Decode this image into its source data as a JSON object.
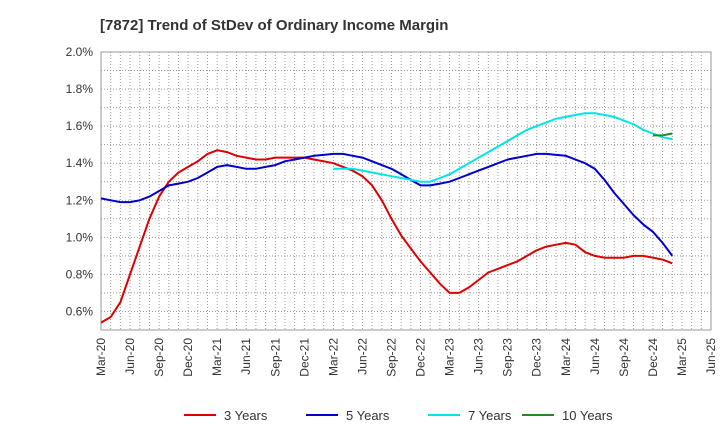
{
  "chart_data": {
    "type": "line",
    "title": "[7872]  Trend of StDev of Ordinary Income Margin",
    "xlabel": "",
    "ylabel": "",
    "x_ticks": [
      "Mar-20",
      "Jun-20",
      "Sep-20",
      "Dec-20",
      "Mar-21",
      "Jun-21",
      "Sep-21",
      "Dec-21",
      "Mar-22",
      "Jun-22",
      "Sep-22",
      "Dec-22",
      "Mar-23",
      "Jun-23",
      "Sep-23",
      "Dec-23",
      "Mar-24",
      "Jun-24",
      "Sep-24",
      "Dec-24",
      "Mar-25",
      "Jun-25"
    ],
    "y_ticks": [
      "0.6%",
      "0.8%",
      "1.0%",
      "1.2%",
      "1.4%",
      "1.6%",
      "1.8%",
      "2.0%"
    ],
    "ylim": [
      0.5,
      2.0
    ],
    "y_unit": "%",
    "grid": true,
    "legend_position": "bottom",
    "series": [
      {
        "name": "3 Years",
        "color": "#dd0000",
        "points": [
          [
            "Mar-20",
            0.54
          ],
          [
            "Apr-20",
            0.57
          ],
          [
            "May-20",
            0.65
          ],
          [
            "Jun-20",
            0.8
          ],
          [
            "Jul-20",
            0.95
          ],
          [
            "Aug-20",
            1.1
          ],
          [
            "Sep-20",
            1.22
          ],
          [
            "Oct-20",
            1.3
          ],
          [
            "Nov-20",
            1.35
          ],
          [
            "Dec-20",
            1.38
          ],
          [
            "Jan-21",
            1.41
          ],
          [
            "Feb-21",
            1.45
          ],
          [
            "Mar-21",
            1.47
          ],
          [
            "Apr-21",
            1.46
          ],
          [
            "May-21",
            1.44
          ],
          [
            "Jun-21",
            1.43
          ],
          [
            "Jul-21",
            1.42
          ],
          [
            "Aug-21",
            1.42
          ],
          [
            "Sep-21",
            1.43
          ],
          [
            "Oct-21",
            1.43
          ],
          [
            "Nov-21",
            1.43
          ],
          [
            "Dec-21",
            1.43
          ],
          [
            "Jan-22",
            1.42
          ],
          [
            "Feb-22",
            1.41
          ],
          [
            "Mar-22",
            1.4
          ],
          [
            "Apr-22",
            1.38
          ],
          [
            "May-22",
            1.36
          ],
          [
            "Jun-22",
            1.33
          ],
          [
            "Jul-22",
            1.28
          ],
          [
            "Aug-22",
            1.2
          ],
          [
            "Sep-22",
            1.1
          ],
          [
            "Oct-22",
            1.01
          ],
          [
            "Nov-22",
            0.94
          ],
          [
            "Dec-22",
            0.87
          ],
          [
            "Jan-23",
            0.81
          ],
          [
            "Feb-23",
            0.75
          ],
          [
            "Mar-23",
            0.7
          ],
          [
            "Apr-23",
            0.7
          ],
          [
            "May-23",
            0.73
          ],
          [
            "Jun-23",
            0.77
          ],
          [
            "Jul-23",
            0.81
          ],
          [
            "Aug-23",
            0.83
          ],
          [
            "Sep-23",
            0.85
          ],
          [
            "Oct-23",
            0.87
          ],
          [
            "Nov-23",
            0.9
          ],
          [
            "Dec-23",
            0.93
          ],
          [
            "Jan-24",
            0.95
          ],
          [
            "Feb-24",
            0.96
          ],
          [
            "Mar-24",
            0.97
          ],
          [
            "Apr-24",
            0.96
          ],
          [
            "May-24",
            0.92
          ],
          [
            "Jun-24",
            0.9
          ],
          [
            "Jul-24",
            0.89
          ],
          [
            "Aug-24",
            0.89
          ],
          [
            "Sep-24",
            0.89
          ],
          [
            "Oct-24",
            0.9
          ],
          [
            "Nov-24",
            0.9
          ],
          [
            "Dec-24",
            0.89
          ],
          [
            "Jan-25",
            0.88
          ],
          [
            "Feb-25",
            0.86
          ]
        ]
      },
      {
        "name": "5 Years",
        "color": "#0000cc",
        "points": [
          [
            "Mar-20",
            1.21
          ],
          [
            "Apr-20",
            1.2
          ],
          [
            "May-20",
            1.19
          ],
          [
            "Jun-20",
            1.19
          ],
          [
            "Jul-20",
            1.2
          ],
          [
            "Aug-20",
            1.22
          ],
          [
            "Sep-20",
            1.25
          ],
          [
            "Oct-20",
            1.28
          ],
          [
            "Nov-20",
            1.29
          ],
          [
            "Dec-20",
            1.3
          ],
          [
            "Jan-21",
            1.32
          ],
          [
            "Feb-21",
            1.35
          ],
          [
            "Mar-21",
            1.38
          ],
          [
            "Apr-21",
            1.39
          ],
          [
            "May-21",
            1.38
          ],
          [
            "Jun-21",
            1.37
          ],
          [
            "Jul-21",
            1.37
          ],
          [
            "Aug-21",
            1.38
          ],
          [
            "Sep-21",
            1.39
          ],
          [
            "Oct-21",
            1.41
          ],
          [
            "Nov-21",
            1.42
          ],
          [
            "Dec-21",
            1.43
          ],
          [
            "Jan-22",
            1.44
          ],
          [
            "Feb-22",
            1.445
          ],
          [
            "Mar-22",
            1.45
          ],
          [
            "Apr-22",
            1.45
          ],
          [
            "May-22",
            1.44
          ],
          [
            "Jun-22",
            1.43
          ],
          [
            "Jul-22",
            1.41
          ],
          [
            "Aug-22",
            1.39
          ],
          [
            "Sep-22",
            1.37
          ],
          [
            "Oct-22",
            1.34
          ],
          [
            "Nov-22",
            1.31
          ],
          [
            "Dec-22",
            1.28
          ],
          [
            "Jan-23",
            1.28
          ],
          [
            "Feb-23",
            1.29
          ],
          [
            "Mar-23",
            1.3
          ],
          [
            "Apr-23",
            1.32
          ],
          [
            "May-23",
            1.34
          ],
          [
            "Jun-23",
            1.36
          ],
          [
            "Jul-23",
            1.38
          ],
          [
            "Aug-23",
            1.4
          ],
          [
            "Sep-23",
            1.42
          ],
          [
            "Oct-23",
            1.43
          ],
          [
            "Nov-23",
            1.44
          ],
          [
            "Dec-23",
            1.45
          ],
          [
            "Jan-24",
            1.45
          ],
          [
            "Feb-24",
            1.445
          ],
          [
            "Mar-24",
            1.44
          ],
          [
            "Apr-24",
            1.42
          ],
          [
            "May-24",
            1.4
          ],
          [
            "Jun-24",
            1.37
          ],
          [
            "Jul-24",
            1.31
          ],
          [
            "Aug-24",
            1.24
          ],
          [
            "Sep-24",
            1.18
          ],
          [
            "Oct-24",
            1.12
          ],
          [
            "Nov-24",
            1.07
          ],
          [
            "Dec-24",
            1.03
          ],
          [
            "Jan-25",
            0.97
          ],
          [
            "Feb-25",
            0.9
          ]
        ]
      },
      {
        "name": "7 Years",
        "color": "#00e5e5",
        "points": [
          [
            "Mar-22",
            1.37
          ],
          [
            "Apr-22",
            1.37
          ],
          [
            "May-22",
            1.37
          ],
          [
            "Jun-22",
            1.36
          ],
          [
            "Jul-22",
            1.35
          ],
          [
            "Aug-22",
            1.34
          ],
          [
            "Sep-22",
            1.33
          ],
          [
            "Oct-22",
            1.32
          ],
          [
            "Nov-22",
            1.31
          ],
          [
            "Dec-22",
            1.3
          ],
          [
            "Jan-23",
            1.3
          ],
          [
            "Feb-23",
            1.32
          ],
          [
            "Mar-23",
            1.34
          ],
          [
            "Apr-23",
            1.37
          ],
          [
            "May-23",
            1.4
          ],
          [
            "Jun-23",
            1.43
          ],
          [
            "Jul-23",
            1.46
          ],
          [
            "Aug-23",
            1.49
          ],
          [
            "Sep-23",
            1.52
          ],
          [
            "Oct-23",
            1.55
          ],
          [
            "Nov-23",
            1.58
          ],
          [
            "Dec-23",
            1.6
          ],
          [
            "Jan-24",
            1.62
          ],
          [
            "Feb-24",
            1.64
          ],
          [
            "Mar-24",
            1.65
          ],
          [
            "Apr-24",
            1.66
          ],
          [
            "May-24",
            1.67
          ],
          [
            "Jun-24",
            1.67
          ],
          [
            "Jul-24",
            1.66
          ],
          [
            "Aug-24",
            1.65
          ],
          [
            "Sep-24",
            1.63
          ],
          [
            "Oct-24",
            1.61
          ],
          [
            "Nov-24",
            1.58
          ],
          [
            "Dec-24",
            1.56
          ],
          [
            "Jan-25",
            1.54
          ],
          [
            "Feb-25",
            1.53
          ]
        ]
      },
      {
        "name": "10 Years",
        "color": "#228b22",
        "points": [
          [
            "Dec-24",
            1.55
          ],
          [
            "Jan-25",
            1.55
          ],
          [
            "Feb-25",
            1.56
          ]
        ]
      }
    ]
  }
}
